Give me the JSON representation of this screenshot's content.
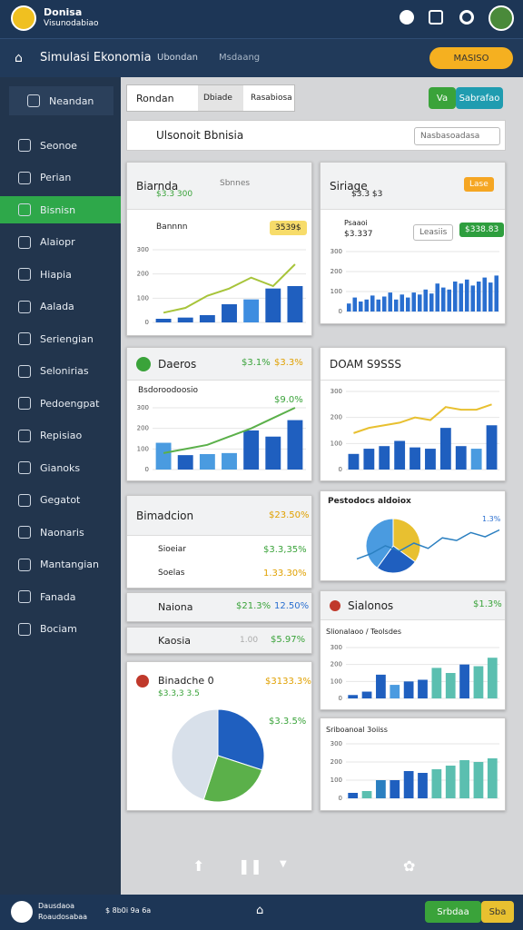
{
  "header": {
    "brand": "Donisa",
    "sub": "Visunodabiao"
  },
  "nav": {
    "title": "Simulasi Ekonomia",
    "tab1": "Ubondan",
    "tab2": "Msdaang",
    "button": "MASISO"
  },
  "sidebar": [
    "Neandan",
    "Seonoe",
    "Perian",
    "Bisnisn",
    "Alaiopr",
    "Hiapia",
    "Aalada",
    "Seriengian",
    "Selonirias",
    "Pedoengpat",
    "Repisiao",
    "Gianoks",
    "Gegatot",
    "Naonaris",
    "Mantangian",
    "Fanada",
    "Bociam"
  ],
  "toolbar": {
    "tab1": "Rondan",
    "tab2": "Dbiade",
    "tab3": "Rasabiosa",
    "btn1": "Va",
    "btn2": "Sabrafao"
  },
  "titlebar": {
    "title": "Ulsonoit Bbnisia",
    "dropdown": "Nasbasoadasa"
  },
  "cards": [
    {
      "title": "Biarnda",
      "sub": "$3.3 300",
      "chip": "Sbnnes",
      "label": "Bannnn",
      "badge": "3539$"
    },
    {
      "title": "Siriage",
      "sub": "$3.3 $3",
      "chip": "Lase",
      "label": "Psaaoi",
      "value": "$3.337",
      "badge1": "Leasiis",
      "badge2": "$338.83"
    },
    {
      "title": "Daeros",
      "v1": "$3.1%",
      "v2": "$3.3%",
      "label": "Bsdoroodoosio",
      "value": "$9.0%"
    },
    {
      "title": "DOAM S9SSS"
    },
    {
      "title": "Bimadcion",
      "value": "$23.50%",
      "rows": [
        [
          "Sioeiar",
          "$3.3,35%"
        ],
        [
          "Soelas",
          "1.33.30%"
        ]
      ]
    },
    {
      "title": "Naiona",
      "v1": "$21.3%",
      "v2": "12.50%"
    },
    {
      "title": "Kaosia",
      "v1": "1.00",
      "v2": "$5.97%"
    },
    {
      "title": "Pestodocs aldoiox",
      "value": "1.3%"
    },
    {
      "title": "Sialonos",
      "value": "$1.3%",
      "label": "Slionalaoo / Teolsdes"
    },
    {
      "title": "Binadche 0",
      "sub": "$3.3,3 3.5",
      "value": "$3133.3%",
      "value2": "$3.3.5%"
    },
    {
      "title": "Sriboanoal 3oiiss"
    }
  ],
  "charts": [
    {
      "type": "combo",
      "ylim": [
        0,
        300
      ],
      "yticks": [
        0,
        100,
        200,
        300
      ],
      "values": [
        15,
        20,
        30,
        75,
        95,
        140,
        150
      ],
      "colors": [
        "#1f5fbf",
        "#1f5fbf",
        "#1f5fbf",
        "#1f5fbf",
        "#3d8de0",
        "#1f5fbf",
        "#1f5fbf"
      ],
      "line": [
        40,
        60,
        110,
        140,
        185,
        150,
        240
      ],
      "line_color": "#a7c43a"
    },
    {
      "type": "bar",
      "ylim": [
        0,
        300
      ],
      "yticks": [
        0,
        100,
        200,
        300
      ],
      "values": [
        40,
        70,
        50,
        60,
        80,
        60,
        75,
        95,
        60,
        85,
        70,
        95,
        85,
        110,
        90,
        140,
        120,
        110,
        150,
        140,
        160,
        130,
        150,
        170,
        145,
        180
      ],
      "color": "#2a6fd0"
    },
    {
      "type": "combo",
      "ylim": [
        0,
        300
      ],
      "yticks": [
        0,
        100,
        200,
        300
      ],
      "values": [
        130,
        70,
        75,
        80,
        190,
        160,
        240
      ],
      "colors": [
        "#4a9be0",
        "#1f5fbf",
        "#4a9be0",
        "#4a9be0",
        "#1f5fbf",
        "#1f5fbf",
        "#1f5fbf"
      ],
      "line": [
        80,
        100,
        120,
        160,
        200,
        250,
        300
      ],
      "line_color": "#5bb04a"
    },
    {
      "type": "combo",
      "ylim": [
        0,
        300
      ],
      "yticks": [
        0,
        100,
        200,
        300
      ],
      "values": [
        60,
        80,
        90,
        110,
        85,
        80,
        160,
        90,
        80,
        170
      ],
      "colors": [
        "#1f5fbf",
        "#1f5fbf",
        "#1f5fbf",
        "#1f5fbf",
        "#1f5fbf",
        "#1f5fbf",
        "#1f5fbf",
        "#1f5fbf",
        "#4a9be0",
        "#1f5fbf"
      ],
      "line": [
        140,
        160,
        170,
        180,
        200,
        190,
        240,
        230,
        230,
        250
      ],
      "line_color": "#e8c030"
    },
    {
      "type": "pieline",
      "values": [
        35,
        25,
        40
      ],
      "colors": [
        "#e8c030",
        "#1f5fbf",
        "#4a9be0"
      ],
      "ylim": [
        0,
        100
      ],
      "line": [
        20,
        30,
        45,
        35,
        50,
        40,
        60,
        55,
        70,
        62,
        75
      ]
    },
    {
      "type": "bar",
      "ylim": [
        0,
        300
      ],
      "yticks": [
        0,
        100,
        200,
        300
      ],
      "values": [
        20,
        40,
        140,
        80,
        100,
        110,
        180,
        150,
        200,
        190,
        240
      ],
      "colors": [
        "#1f5fbf",
        "#1f5fbf",
        "#1f5fbf",
        "#4a9be0",
        "#1f5fbf",
        "#1f5fbf",
        "#5bbfb0",
        "#5bbfb0",
        "#1f5fbf",
        "#5bbfb0",
        "#5bbfb0"
      ]
    },
    {
      "type": "pie",
      "values": [
        30,
        25,
        45
      ],
      "colors": [
        "#1f5fbf",
        "#5bb04a",
        "#d8e0ea"
      ]
    },
    {
      "type": "bar",
      "ylim": [
        0,
        300
      ],
      "yticks": [
        0,
        100,
        200,
        300
      ],
      "values": [
        30,
        40,
        100,
        100,
        150,
        140,
        160,
        180,
        210,
        200,
        220
      ],
      "colors": [
        "#1f5fbf",
        "#5bbfb0",
        "#2a7fc0",
        "#1f5fbf",
        "#1f5fbf",
        "#1f5fbf",
        "#5bbfb0",
        "#5bbfb0",
        "#5bbfb0",
        "#5bbfb0",
        "#5bbfb0"
      ]
    }
  ],
  "footer": {
    "brand": "Dausdaoa",
    "sub": "Roaudosabaa",
    "info": "$ 8b0i 9a 6a",
    "btn1": "Srbdaa",
    "btn2": "Sba"
  }
}
